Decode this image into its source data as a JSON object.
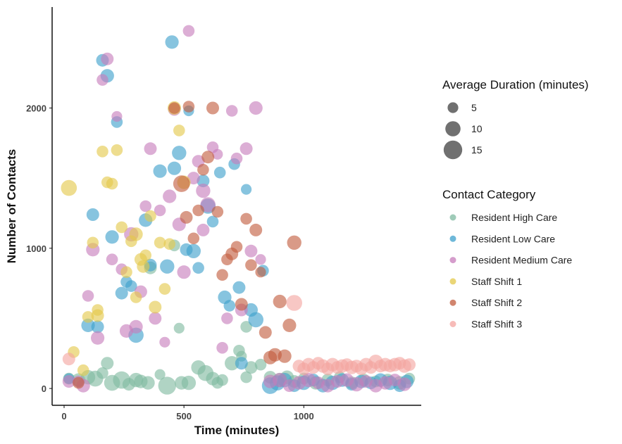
{
  "chart_data": {
    "type": "scatter",
    "title": "",
    "xlabel": "Time (minutes)",
    "ylabel": "Number of Contacts",
    "xlim": [
      -50,
      1490
    ],
    "ylim": [
      -120,
      2720
    ],
    "x_ticks": [
      0,
      500,
      1000
    ],
    "y_ticks": [
      0,
      1000,
      2000
    ],
    "x_tick_labels": [
      "0",
      "500",
      "1000"
    ],
    "y_tick_labels": [
      "0",
      "1000",
      "2000"
    ],
    "grid": false,
    "legend_position": "right",
    "size_legend": {
      "title": "Average Duration (minutes)",
      "values": [
        5,
        10,
        15
      ],
      "labels": [
        "5",
        "10",
        "15"
      ]
    },
    "color_legend": {
      "title": "Contact Category"
    },
    "series": [
      {
        "name": "Resident High Care",
        "color": "#7fb9a0",
        "points": [
          [
            20,
            70,
            6
          ],
          [
            60,
            60,
            8
          ],
          [
            100,
            80,
            9
          ],
          [
            130,
            70,
            11
          ],
          [
            160,
            110,
            6
          ],
          [
            180,
            180,
            7
          ],
          [
            200,
            40,
            11
          ],
          [
            240,
            60,
            13
          ],
          [
            270,
            30,
            7
          ],
          [
            300,
            60,
            9
          ],
          [
            320,
            50,
            8
          ],
          [
            360,
            860,
            7
          ],
          [
            400,
            100,
            5
          ],
          [
            430,
            20,
            14
          ],
          [
            490,
            40,
            8
          ],
          [
            520,
            40,
            9
          ],
          [
            560,
            150,
            9
          ],
          [
            590,
            110,
            11
          ],
          [
            620,
            70,
            8
          ],
          [
            660,
            60,
            6
          ],
          [
            700,
            180,
            9
          ],
          [
            730,
            270,
            6
          ],
          [
            760,
            440,
            6
          ],
          [
            780,
            150,
            7
          ],
          [
            820,
            170,
            6
          ],
          [
            860,
            80,
            7
          ],
          [
            900,
            60,
            9
          ],
          [
            930,
            80,
            8
          ],
          [
            960,
            50,
            7
          ],
          [
            1000,
            70,
            6
          ],
          [
            1050,
            40,
            8
          ],
          [
            1100,
            60,
            7
          ],
          [
            1150,
            80,
            6
          ],
          [
            1200,
            40,
            7
          ],
          [
            1250,
            60,
            7
          ],
          [
            1300,
            50,
            6
          ],
          [
            1350,
            60,
            7
          ],
          [
            1400,
            40,
            8
          ],
          [
            1440,
            70,
            6
          ],
          [
            460,
            1020,
            6
          ],
          [
            480,
            430,
            5
          ],
          [
            740,
            230,
            5
          ],
          [
            350,
            40,
            8
          ],
          [
            640,
            40,
            6
          ],
          [
            760,
            80,
            6
          ]
        ]
      },
      {
        "name": "Resident Low Care",
        "color": "#3ea0cc",
        "points": [
          [
            20,
            70,
            5
          ],
          [
            100,
            450,
            8
          ],
          [
            140,
            440,
            7
          ],
          [
            160,
            2340,
            7
          ],
          [
            180,
            2230,
            8
          ],
          [
            200,
            1080,
            8
          ],
          [
            220,
            1900,
            6
          ],
          [
            240,
            680,
            7
          ],
          [
            260,
            760,
            6
          ],
          [
            300,
            380,
            10
          ],
          [
            340,
            1200,
            8
          ],
          [
            360,
            880,
            7
          ],
          [
            400,
            1550,
            8
          ],
          [
            430,
            870,
            9
          ],
          [
            450,
            2470,
            8
          ],
          [
            480,
            1680,
            9
          ],
          [
            510,
            990,
            7
          ],
          [
            520,
            1980,
            5
          ],
          [
            540,
            980,
            9
          ],
          [
            560,
            860,
            6
          ],
          [
            580,
            1480,
            7
          ],
          [
            600,
            1300,
            10
          ],
          [
            620,
            1190,
            6
          ],
          [
            650,
            1540,
            6
          ],
          [
            670,
            650,
            8
          ],
          [
            690,
            590,
            6
          ],
          [
            710,
            1600,
            6
          ],
          [
            730,
            720,
            7
          ],
          [
            740,
            180,
            7
          ],
          [
            760,
            1420,
            5
          ],
          [
            780,
            560,
            8
          ],
          [
            800,
            490,
            10
          ],
          [
            830,
            840,
            6
          ],
          [
            860,
            20,
            12
          ],
          [
            890,
            40,
            10
          ],
          [
            920,
            60,
            9
          ],
          [
            960,
            20,
            7
          ],
          [
            1000,
            40,
            9
          ],
          [
            1040,
            60,
            7
          ],
          [
            1080,
            20,
            8
          ],
          [
            1120,
            40,
            9
          ],
          [
            1160,
            60,
            8
          ],
          [
            1200,
            30,
            7
          ],
          [
            1240,
            50,
            8
          ],
          [
            1280,
            40,
            7
          ],
          [
            1320,
            60,
            8
          ],
          [
            1360,
            40,
            9
          ],
          [
            1400,
            20,
            7
          ],
          [
            1430,
            50,
            8
          ],
          [
            120,
            1240,
            7
          ],
          [
            280,
            730,
            6
          ],
          [
            460,
            1570,
            8
          ]
        ]
      },
      {
        "name": "Resident Medium Care",
        "color": "#c77cbb",
        "points": [
          [
            20,
            50,
            7
          ],
          [
            60,
            50,
            6
          ],
          [
            80,
            20,
            8
          ],
          [
            100,
            660,
            6
          ],
          [
            120,
            990,
            8
          ],
          [
            140,
            360,
            8
          ],
          [
            160,
            2200,
            6
          ],
          [
            180,
            2350,
            7
          ],
          [
            200,
            920,
            6
          ],
          [
            220,
            1940,
            5
          ],
          [
            240,
            850,
            6
          ],
          [
            260,
            410,
            8
          ],
          [
            280,
            1100,
            9
          ],
          [
            300,
            440,
            8
          ],
          [
            320,
            690,
            7
          ],
          [
            340,
            1300,
            6
          ],
          [
            360,
            1710,
            7
          ],
          [
            380,
            500,
            7
          ],
          [
            400,
            1270,
            6
          ],
          [
            420,
            330,
            5
          ],
          [
            440,
            1370,
            8
          ],
          [
            460,
            1990,
            7
          ],
          [
            480,
            1170,
            8
          ],
          [
            500,
            830,
            8
          ],
          [
            520,
            2550,
            6
          ],
          [
            540,
            1500,
            7
          ],
          [
            560,
            1620,
            7
          ],
          [
            580,
            1410,
            9
          ],
          [
            600,
            1310,
            10
          ],
          [
            620,
            1720,
            6
          ],
          [
            640,
            1670,
            5
          ],
          [
            660,
            290,
            6
          ],
          [
            680,
            500,
            6
          ],
          [
            700,
            1980,
            6
          ],
          [
            720,
            1640,
            6
          ],
          [
            740,
            560,
            7
          ],
          [
            760,
            1710,
            7
          ],
          [
            780,
            980,
            7
          ],
          [
            800,
            2000,
            8
          ],
          [
            820,
            920,
            5
          ],
          [
            860,
            50,
            8
          ],
          [
            900,
            60,
            9
          ],
          [
            940,
            20,
            7
          ],
          [
            980,
            40,
            8
          ],
          [
            1020,
            60,
            9
          ],
          [
            1060,
            40,
            7
          ],
          [
            1100,
            20,
            8
          ],
          [
            1140,
            50,
            7
          ],
          [
            1180,
            60,
            8
          ],
          [
            1220,
            30,
            9
          ],
          [
            1260,
            50,
            7
          ],
          [
            1300,
            20,
            8
          ],
          [
            1340,
            40,
            8
          ],
          [
            1380,
            60,
            7
          ],
          [
            1420,
            30,
            8
          ],
          [
            580,
            1130,
            7
          ]
        ]
      },
      {
        "name": "Staff Shift 1",
        "color": "#e3c84a",
        "points": [
          [
            20,
            1430,
            11
          ],
          [
            40,
            260,
            6
          ],
          [
            80,
            130,
            6
          ],
          [
            100,
            510,
            6
          ],
          [
            120,
            1040,
            6
          ],
          [
            140,
            520,
            7
          ],
          [
            160,
            1690,
            6
          ],
          [
            180,
            1470,
            6
          ],
          [
            200,
            1460,
            6
          ],
          [
            220,
            1700,
            6
          ],
          [
            240,
            1150,
            6
          ],
          [
            260,
            830,
            6
          ],
          [
            280,
            1050,
            6
          ],
          [
            300,
            650,
            6
          ],
          [
            320,
            920,
            7
          ],
          [
            340,
            950,
            6
          ],
          [
            360,
            1230,
            6
          ],
          [
            380,
            580,
            7
          ],
          [
            400,
            1040,
            6
          ],
          [
            420,
            710,
            6
          ],
          [
            440,
            1030,
            6
          ],
          [
            460,
            2000,
            8
          ],
          [
            480,
            1840,
            6
          ],
          [
            500,
            1470,
            8
          ],
          [
            300,
            1100,
            8
          ],
          [
            330,
            870,
            7
          ],
          [
            140,
            560,
            6
          ]
        ]
      },
      {
        "name": "Staff Shift 2",
        "color": "#c25c3e",
        "points": [
          [
            60,
            40,
            6
          ],
          [
            460,
            2000,
            6
          ],
          [
            490,
            1460,
            12
          ],
          [
            510,
            1220,
            7
          ],
          [
            520,
            2010,
            6
          ],
          [
            540,
            1070,
            6
          ],
          [
            560,
            1270,
            6
          ],
          [
            580,
            1560,
            6
          ],
          [
            600,
            1650,
            7
          ],
          [
            620,
            2000,
            7
          ],
          [
            640,
            1260,
            6
          ],
          [
            660,
            810,
            6
          ],
          [
            680,
            920,
            6
          ],
          [
            700,
            960,
            7
          ],
          [
            720,
            1010,
            6
          ],
          [
            740,
            600,
            7
          ],
          [
            760,
            1210,
            6
          ],
          [
            780,
            880,
            6
          ],
          [
            800,
            1130,
            7
          ],
          [
            820,
            830,
            5
          ],
          [
            840,
            400,
            7
          ],
          [
            860,
            220,
            8
          ],
          [
            880,
            240,
            8
          ],
          [
            900,
            620,
            8
          ],
          [
            920,
            230,
            8
          ],
          [
            940,
            450,
            8
          ],
          [
            960,
            1040,
            9
          ]
        ]
      },
      {
        "name": "Staff Shift 3",
        "color": "#f4a4a0",
        "points": [
          [
            20,
            210,
            7
          ],
          [
            960,
            610,
            11
          ],
          [
            980,
            160,
            7
          ],
          [
            1000,
            140,
            7
          ],
          [
            1020,
            170,
            8
          ],
          [
            1040,
            150,
            7
          ],
          [
            1060,
            180,
            7
          ],
          [
            1080,
            160,
            8
          ],
          [
            1100,
            140,
            7
          ],
          [
            1120,
            170,
            8
          ],
          [
            1140,
            150,
            7
          ],
          [
            1160,
            160,
            8
          ],
          [
            1180,
            170,
            7
          ],
          [
            1200,
            150,
            8
          ],
          [
            1220,
            160,
            7
          ],
          [
            1240,
            140,
            7
          ],
          [
            1260,
            170,
            8
          ],
          [
            1280,
            150,
            7
          ],
          [
            1300,
            190,
            9
          ],
          [
            1320,
            160,
            7
          ],
          [
            1340,
            170,
            8
          ],
          [
            1360,
            160,
            7
          ],
          [
            1380,
            170,
            8
          ],
          [
            1400,
            180,
            7
          ],
          [
            1420,
            160,
            8
          ],
          [
            1440,
            170,
            7
          ]
        ]
      }
    ]
  }
}
